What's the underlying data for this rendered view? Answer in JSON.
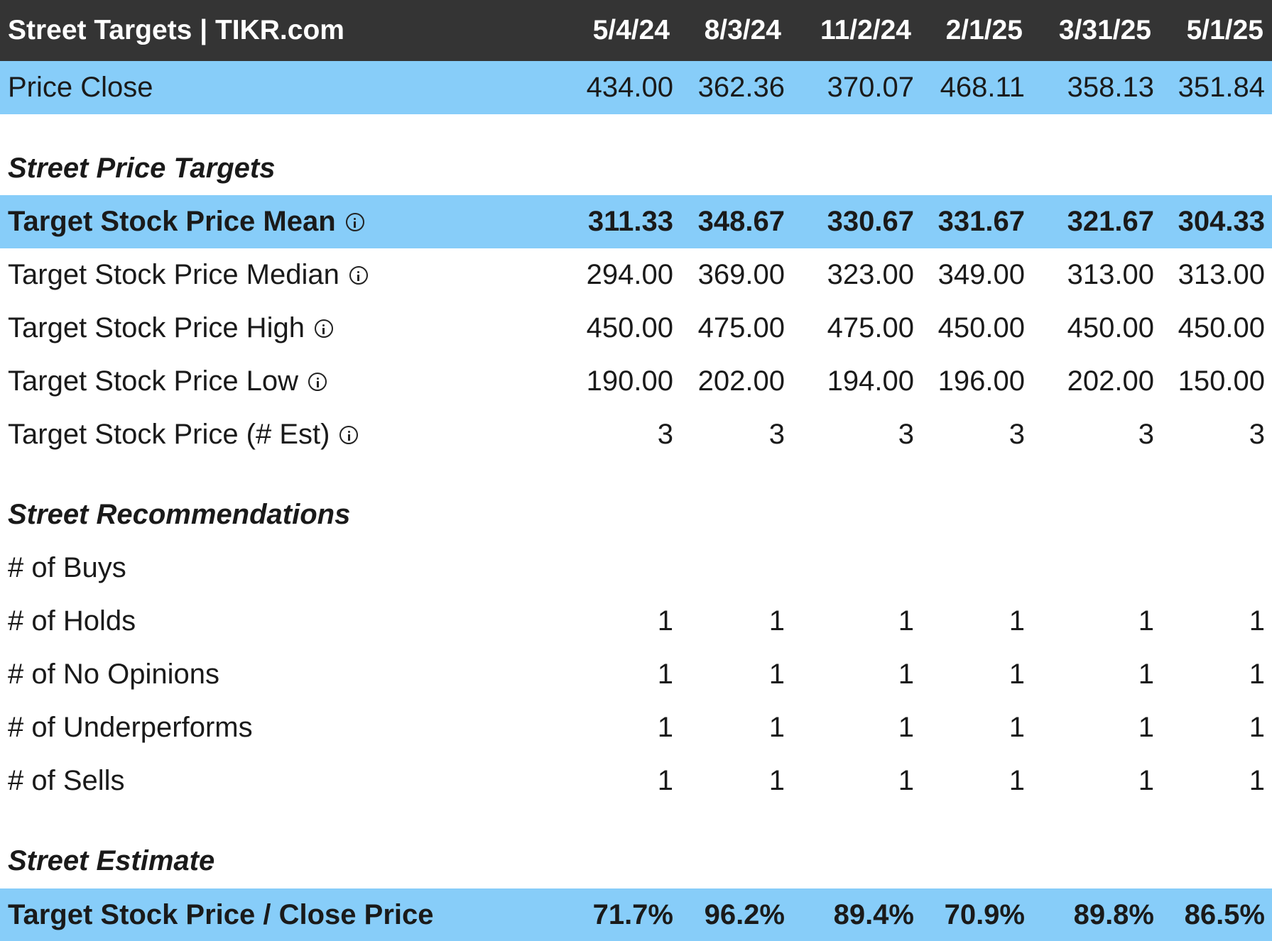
{
  "header": {
    "title": "Street Targets | TIKR.com",
    "dates": [
      "5/4/24",
      "8/3/24",
      "11/2/24",
      "2/1/25",
      "3/31/25",
      "5/1/25"
    ]
  },
  "price_close": {
    "label": "Price Close",
    "values": [
      "434.00",
      "362.36",
      "370.07",
      "468.11",
      "358.13",
      "351.84"
    ]
  },
  "sections": {
    "price_targets": "Street Price Targets",
    "recommendations": "Street Recommendations",
    "estimate": "Street Estimate"
  },
  "target_mean": {
    "label": "Target Stock Price Mean",
    "values": [
      "311.33",
      "348.67",
      "330.67",
      "331.67",
      "321.67",
      "304.33"
    ]
  },
  "target_median": {
    "label": "Target Stock Price Median",
    "values": [
      "294.00",
      "369.00",
      "323.00",
      "349.00",
      "313.00",
      "313.00"
    ]
  },
  "target_high": {
    "label": "Target Stock Price High",
    "values": [
      "450.00",
      "475.00",
      "475.00",
      "450.00",
      "450.00",
      "450.00"
    ]
  },
  "target_low": {
    "label": "Target Stock Price Low",
    "values": [
      "190.00",
      "202.00",
      "194.00",
      "196.00",
      "202.00",
      "150.00"
    ]
  },
  "target_est": {
    "label": "Target Stock Price (# Est)",
    "values": [
      "3",
      "3",
      "3",
      "3",
      "3",
      "3"
    ]
  },
  "buys": {
    "label": "# of Buys",
    "values": [
      "",
      "",
      "",
      "",
      "",
      ""
    ]
  },
  "holds": {
    "label": "# of Holds",
    "values": [
      "1",
      "1",
      "1",
      "1",
      "1",
      "1"
    ]
  },
  "no_opinions": {
    "label": "# of No Opinions",
    "values": [
      "1",
      "1",
      "1",
      "1",
      "1",
      "1"
    ]
  },
  "underperforms": {
    "label": "# of Underperforms",
    "values": [
      "1",
      "1",
      "1",
      "1",
      "1",
      "1"
    ]
  },
  "sells": {
    "label": "# of Sells",
    "values": [
      "1",
      "1",
      "1",
      "1",
      "1",
      "1"
    ]
  },
  "target_close": {
    "label": "Target Stock Price / Close Price",
    "values": [
      "71.7%",
      "96.2%",
      "89.4%",
      "70.9%",
      "89.8%",
      "86.5%"
    ]
  },
  "icons": {
    "info": "info-circle-icon"
  },
  "colors": {
    "header_bg": "#343434",
    "highlight_bg": "#87cdf9"
  }
}
